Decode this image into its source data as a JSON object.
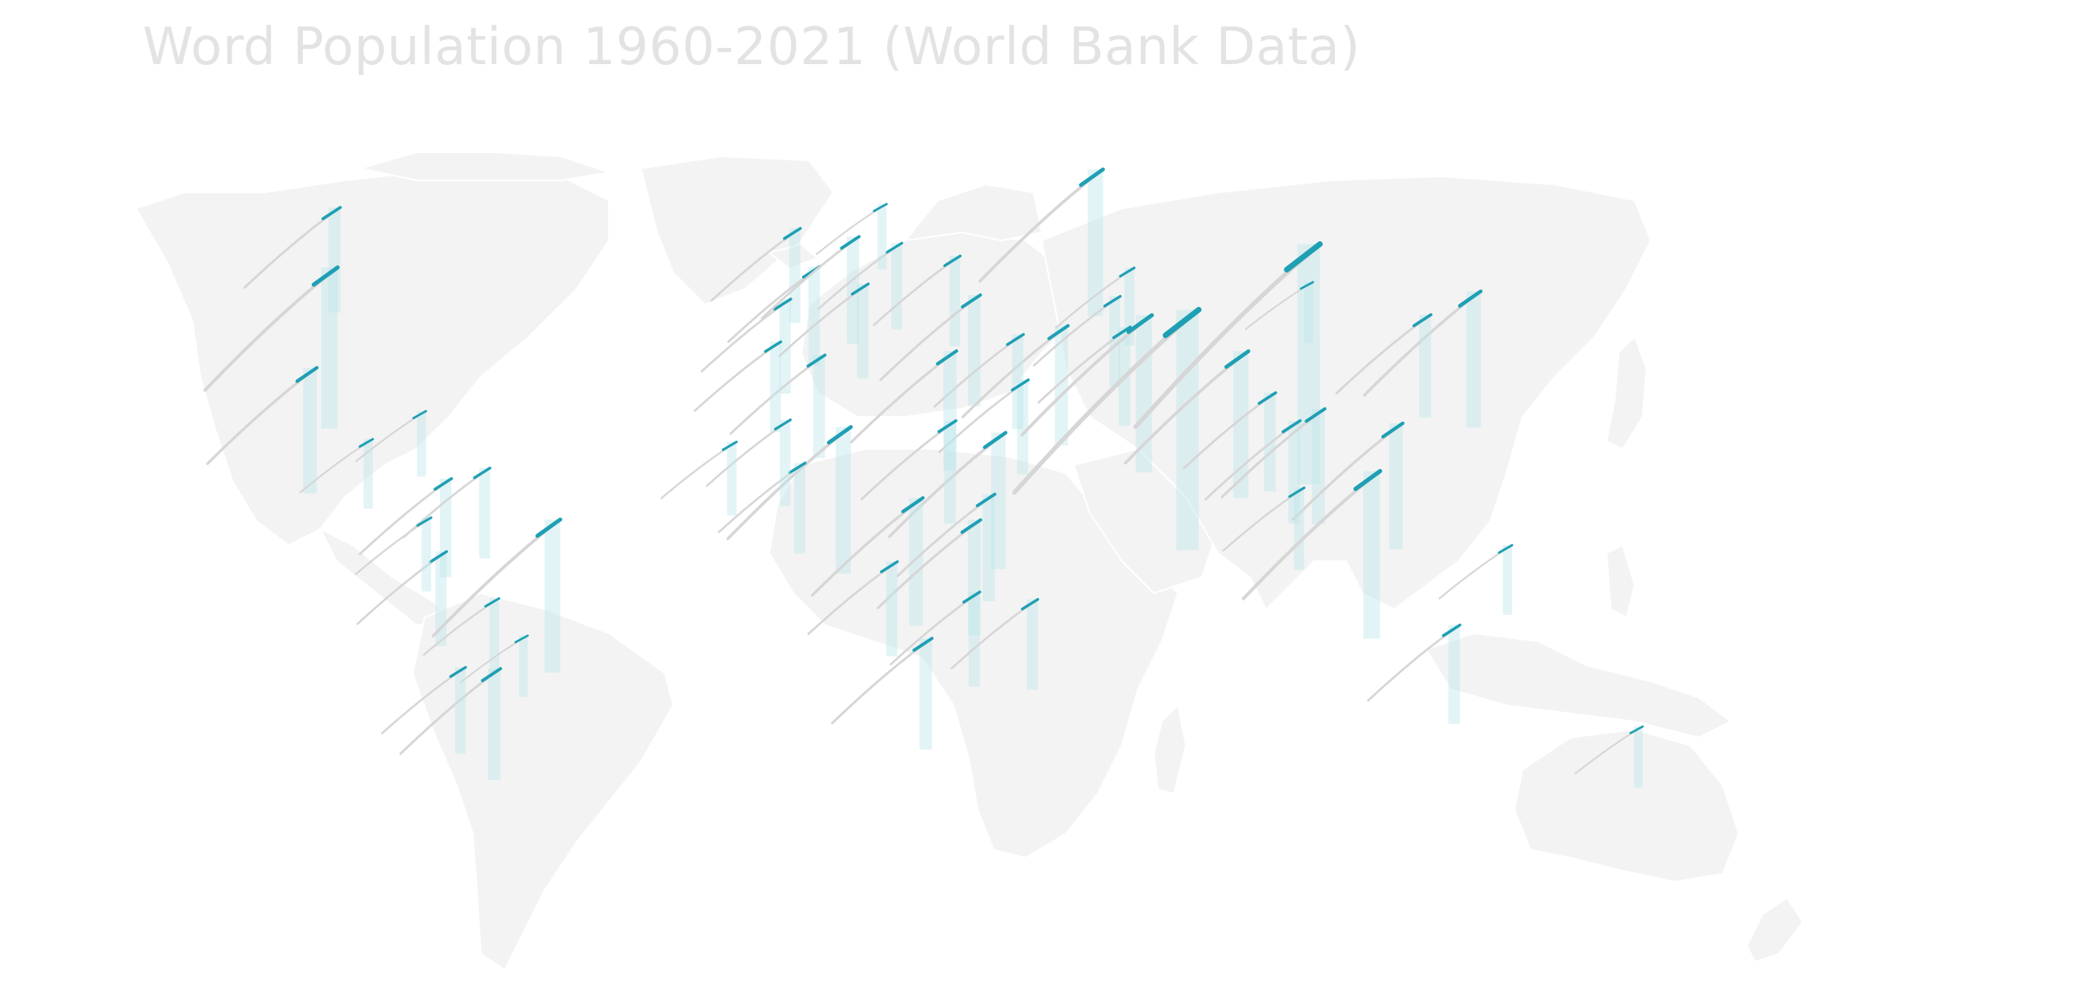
{
  "title": "Word Population 1960-2021 (World Bank Data)",
  "colors": {
    "background": "#ffffff",
    "land": "#f3f3f3",
    "title": "#e3e3e3",
    "trend_line": "#d6d6d6",
    "recent_highlight": "#1e9fb4",
    "bar": "#bfe6ec"
  },
  "chart_data": {
    "type": "map",
    "metric": "population trend per country, 1960-2021 (relative glyph size)",
    "glyph": "trend line (grey) ending in recent segment (teal) with vertical bar",
    "markers": [
      {
        "id": "canada",
        "lon": -97,
        "lat": 57,
        "size": 0.35
      },
      {
        "id": "usa",
        "lon": -98,
        "lat": 39,
        "size": 0.62
      },
      {
        "id": "mexico",
        "lon": -102,
        "lat": 23,
        "size": 0.45
      },
      {
        "id": "guatemala",
        "lon": -90,
        "lat": 15,
        "size": 0.18
      },
      {
        "id": "cuba",
        "lon": -79,
        "lat": 21,
        "size": 0.16
      },
      {
        "id": "colombia",
        "lon": -74,
        "lat": 4,
        "size": 0.32
      },
      {
        "id": "venezuela",
        "lon": -66,
        "lat": 7,
        "size": 0.28
      },
      {
        "id": "peru",
        "lon": -75,
        "lat": -10,
        "size": 0.3
      },
      {
        "id": "ecuador",
        "lon": -78,
        "lat": -1,
        "size": 0.2
      },
      {
        "id": "brazil",
        "lon": -52,
        "lat": -10,
        "size": 0.58
      },
      {
        "id": "bolivia",
        "lon": -64,
        "lat": -17,
        "size": 0.2
      },
      {
        "id": "paraguay",
        "lon": -58,
        "lat": -23,
        "size": 0.14
      },
      {
        "id": "argentina",
        "lon": -64,
        "lat": -35,
        "size": 0.38
      },
      {
        "id": "chile",
        "lon": -71,
        "lat": -32,
        "size": 0.26
      },
      {
        "id": "uk",
        "lon": -2,
        "lat": 54,
        "size": 0.3
      },
      {
        "id": "france",
        "lon": 2,
        "lat": 46,
        "size": 0.32
      },
      {
        "id": "spain",
        "lon": -4,
        "lat": 40,
        "size": 0.3
      },
      {
        "id": "germany",
        "lon": 10,
        "lat": 51,
        "size": 0.36
      },
      {
        "id": "italy",
        "lon": 12,
        "lat": 43,
        "size": 0.3
      },
      {
        "id": "poland",
        "lon": 19,
        "lat": 52,
        "size": 0.26
      },
      {
        "id": "ukraine",
        "lon": 31,
        "lat": 49,
        "size": 0.28
      },
      {
        "id": "sweden",
        "lon": 16,
        "lat": 62,
        "size": 0.16
      },
      {
        "id": "russia",
        "lon": 60,
        "lat": 60,
        "size": 0.55
      },
      {
        "id": "turkey",
        "lon": 35,
        "lat": 39,
        "size": 0.38
      },
      {
        "id": "iran",
        "lon": 53,
        "lat": 32,
        "size": 0.42
      },
      {
        "id": "iraq",
        "lon": 44,
        "lat": 33,
        "size": 0.3
      },
      {
        "id": "saudi",
        "lon": 45,
        "lat": 24,
        "size": 0.3
      },
      {
        "id": "egypt",
        "lon": 30,
        "lat": 27,
        "size": 0.42
      },
      {
        "id": "algeria",
        "lon": 3,
        "lat": 28,
        "size": 0.34
      },
      {
        "id": "morocco",
        "lon": -6,
        "lat": 32,
        "size": 0.28
      },
      {
        "id": "nigeria",
        "lon": 8,
        "lat": 9,
        "size": 0.55
      },
      {
        "id": "ethiopia",
        "lon": 40,
        "lat": 9,
        "size": 0.5
      },
      {
        "id": "sudan",
        "lon": 30,
        "lat": 15,
        "size": 0.34
      },
      {
        "id": "drc",
        "lon": 23,
        "lat": -3,
        "size": 0.46
      },
      {
        "id": "kenya",
        "lon": 38,
        "lat": 0,
        "size": 0.36
      },
      {
        "id": "tanzania",
        "lon": 35,
        "lat": -6,
        "size": 0.4
      },
      {
        "id": "angola",
        "lon": 18,
        "lat": -12,
        "size": 0.3
      },
      {
        "id": "mozambique",
        "lon": 35,
        "lat": -18,
        "size": 0.3
      },
      {
        "id": "south_africa",
        "lon": 25,
        "lat": -29,
        "size": 0.38
      },
      {
        "id": "madagascar",
        "lon": 47,
        "lat": -19,
        "size": 0.28
      },
      {
        "id": "ghana",
        "lon": -1,
        "lat": 8,
        "size": 0.28
      },
      {
        "id": "mali",
        "lon": -4,
        "lat": 17,
        "size": 0.26
      },
      {
        "id": "senegal",
        "lon": -15,
        "lat": 14,
        "size": 0.2
      },
      {
        "id": "kazakhstan",
        "lon": 67,
        "lat": 48,
        "size": 0.22
      },
      {
        "id": "uzbekistan",
        "lon": 64,
        "lat": 41,
        "size": 0.28
      },
      {
        "id": "afghanistan",
        "lon": 66,
        "lat": 34,
        "size": 0.32
      },
      {
        "id": "pakistan",
        "lon": 70,
        "lat": 30,
        "size": 0.6
      },
      {
        "id": "india",
        "lon": 79,
        "lat": 22,
        "size": 1.0
      },
      {
        "id": "china",
        "lon": 104,
        "lat": 35,
        "size": 1.0
      },
      {
        "id": "mongolia",
        "lon": 104,
        "lat": 47,
        "size": 0.14
      },
      {
        "id": "japan",
        "lon": 138,
        "lat": 37,
        "size": 0.5
      },
      {
        "id": "korea",
        "lon": 128,
        "lat": 36,
        "size": 0.34
      },
      {
        "id": "bangladesh",
        "lon": 90,
        "lat": 24,
        "size": 0.55
      },
      {
        "id": "myanmar",
        "lon": 96,
        "lat": 21,
        "size": 0.32
      },
      {
        "id": "thailand",
        "lon": 101,
        "lat": 15,
        "size": 0.34
      },
      {
        "id": "vietnam",
        "lon": 106,
        "lat": 16,
        "size": 0.4
      },
      {
        "id": "philippines",
        "lon": 122,
        "lat": 12,
        "size": 0.45
      },
      {
        "id": "malaysia",
        "lon": 102,
        "lat": 4,
        "size": 0.24
      },
      {
        "id": "indonesia",
        "lon": 117,
        "lat": -2,
        "size": 0.65
      },
      {
        "id": "png",
        "lon": 145,
        "lat": -6,
        "size": 0.18
      },
      {
        "id": "australia",
        "lon": 134,
        "lat": -25,
        "size": 0.32
      },
      {
        "id": "new_zealand",
        "lon": 172,
        "lat": -41,
        "size": 0.14
      }
    ]
  }
}
